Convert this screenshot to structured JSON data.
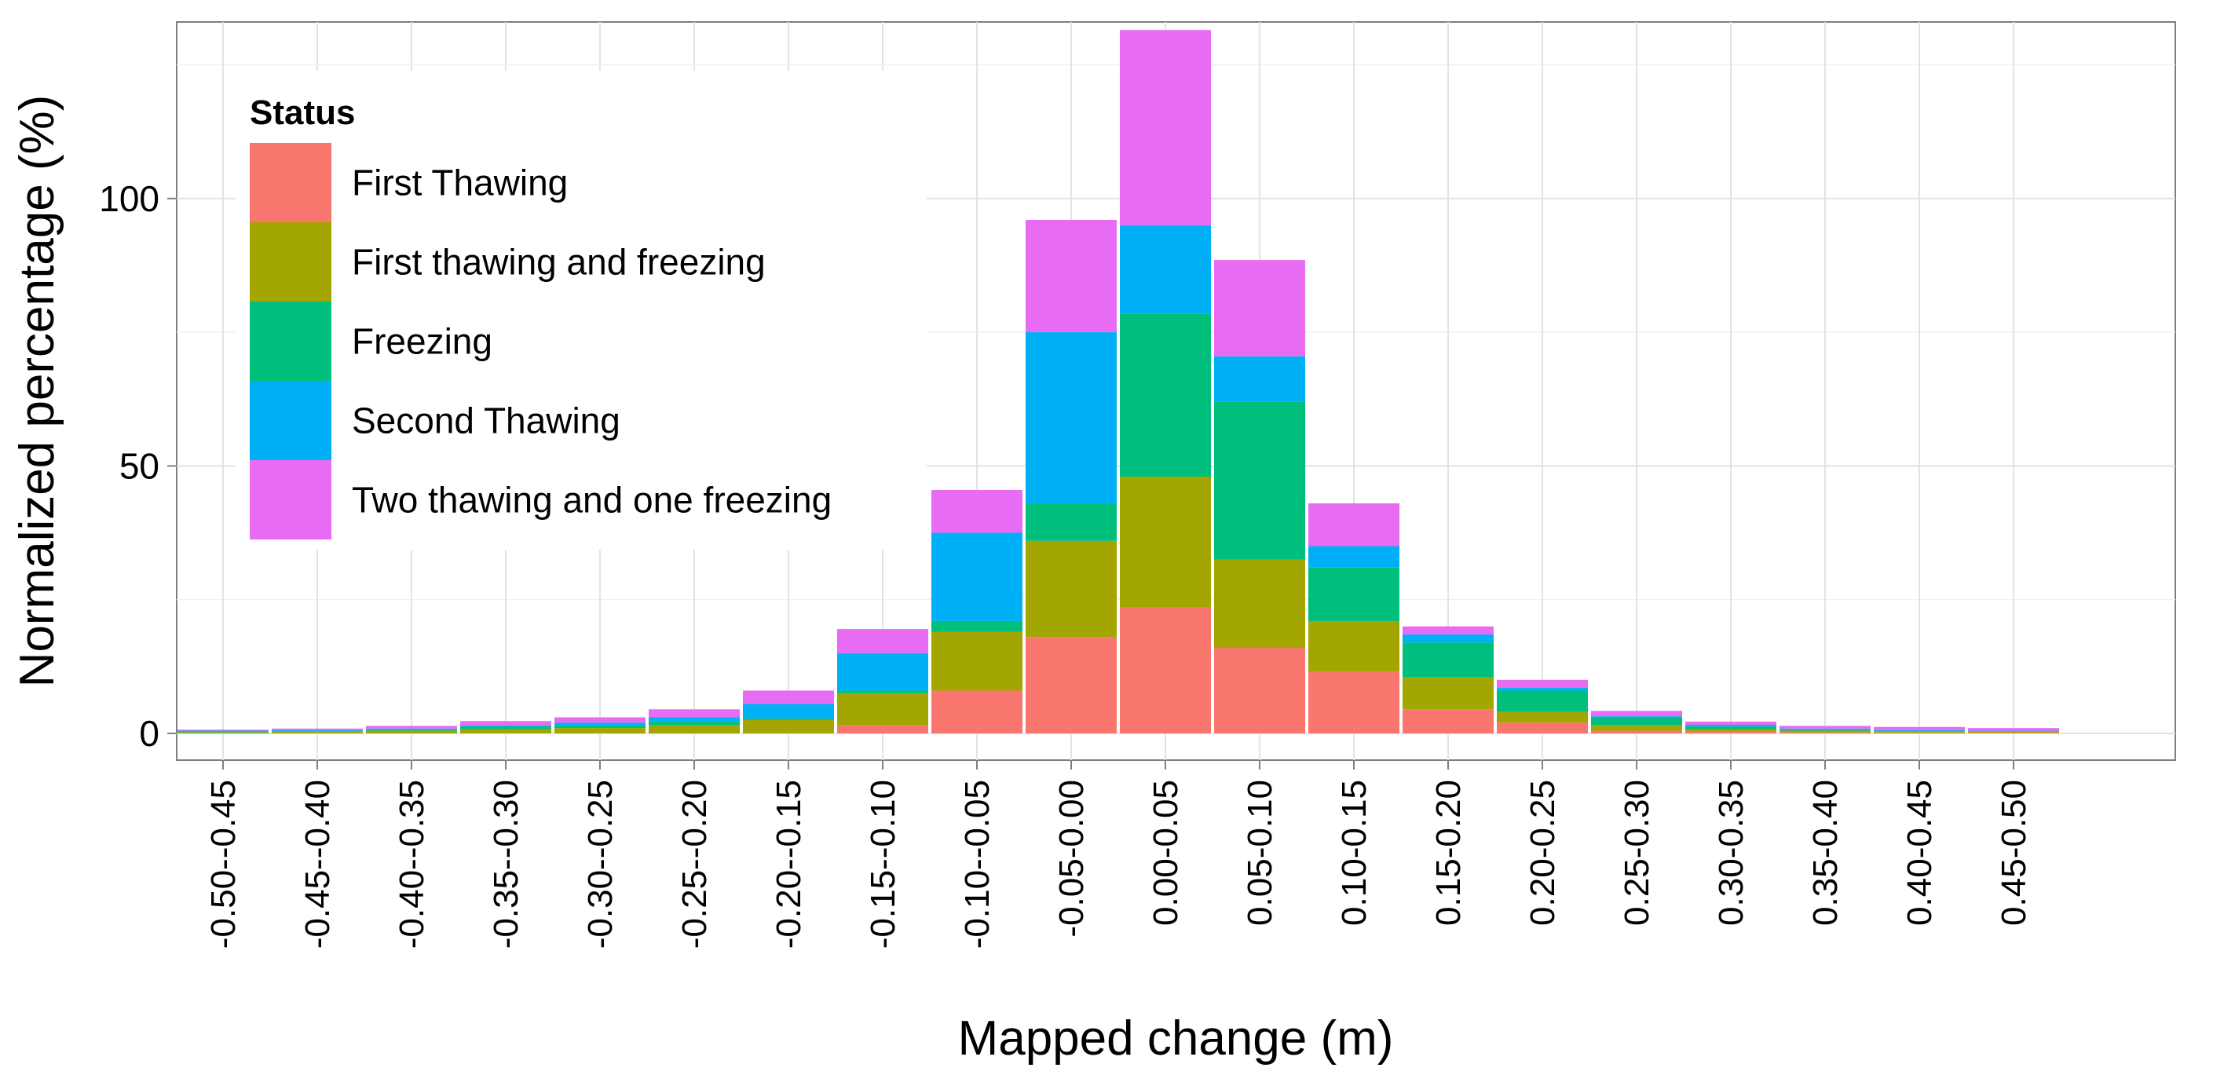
{
  "chart_data": {
    "type": "bar",
    "stacked": true,
    "xlabel": "Mapped change (m)",
    "ylabel": "Normalized percentage (%)",
    "ylim": [
      -5,
      133
    ],
    "yticks": [
      0,
      50,
      100
    ],
    "grid": true,
    "legend": {
      "title": "Status",
      "placement": "top-left"
    },
    "categories": [
      "-0.50--0.45",
      "-0.45--0.40",
      "-0.40--0.35",
      "-0.35--0.30",
      "-0.30--0.25",
      "-0.25--0.20",
      "-0.20--0.15",
      "-0.15--0.10",
      "-0.10--0.05",
      "-0.05-0.00",
      "0.00-0.05",
      "0.05-0.10",
      "0.10-0.15",
      "0.15-0.20",
      "0.20-0.25",
      "0.25-0.30",
      "0.30-0.35",
      "0.35-0.40",
      "0.40-0.45",
      "0.45-0.50"
    ],
    "series": [
      {
        "name": "First Thawing",
        "color": "#F8766D",
        "values": [
          0,
          0,
          0,
          0,
          0,
          0,
          0,
          1.5,
          8,
          18,
          23.5,
          16,
          11.5,
          4.5,
          2,
          0.5,
          0.3,
          0.2,
          0.1,
          0.1
        ]
      },
      {
        "name": "First thawing and freezing",
        "color": "#A3A500",
        "values": [
          0.2,
          0.3,
          0.5,
          0.8,
          1,
          1.5,
          2.5,
          6,
          11,
          18,
          24.5,
          16.5,
          9.5,
          6,
          2,
          1,
          0.5,
          0.3,
          0.2,
          0.2
        ]
      },
      {
        "name": "Freezing",
        "color": "#00BF7D",
        "values": [
          0.1,
          0.1,
          0.2,
          0.5,
          0.5,
          0.8,
          0.3,
          0.5,
          2,
          7,
          30.5,
          29.5,
          10,
          6.5,
          4,
          1.5,
          0.5,
          0.2,
          0.1,
          0.1
        ]
      },
      {
        "name": "Second Thawing",
        "color": "#00B0F6",
        "values": [
          0.2,
          0.2,
          0.2,
          0.2,
          0.5,
          0.7,
          2.7,
          7,
          16.5,
          32,
          16.5,
          8.5,
          4,
          1.5,
          0.5,
          0.2,
          0.3,
          0.2,
          0.2,
          0.1
        ]
      },
      {
        "name": "Two thawing and one freezing",
        "color": "#E76BF3",
        "values": [
          0.2,
          0.3,
          0.5,
          0.8,
          1,
          1.5,
          2.5,
          4.5,
          8,
          21,
          36.5,
          18,
          8,
          1.5,
          1.5,
          1,
          0.6,
          0.5,
          0.6,
          0.5
        ]
      }
    ]
  }
}
